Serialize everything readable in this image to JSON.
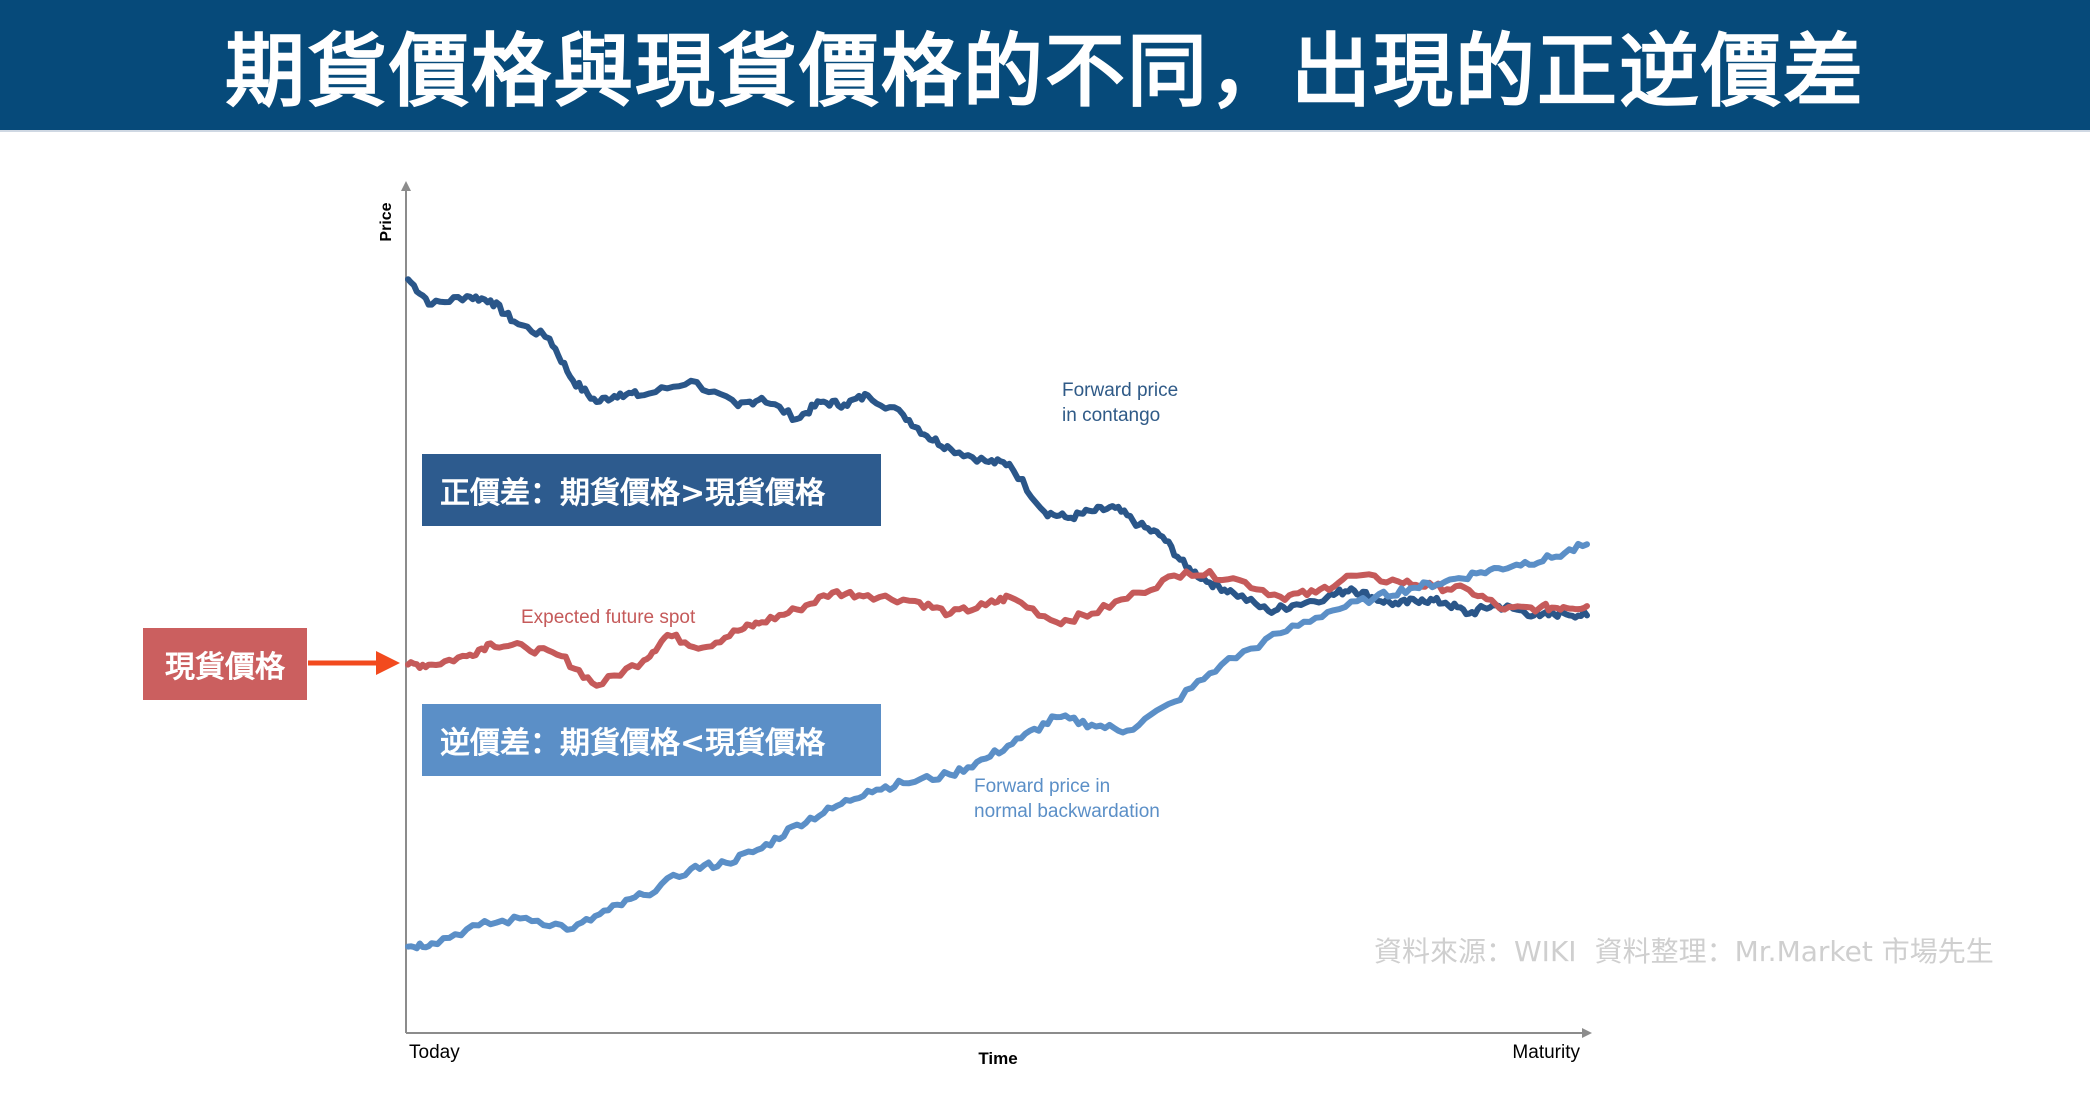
{
  "page": {
    "title": "期貨價格與現貨價格的不同，出現的正逆價差",
    "colors": {
      "title_bar": "#064a7a",
      "contango_line": "#2a5689",
      "spot_line": "#c55a5a",
      "backwardation_line": "#5b8fc7",
      "contango_box": "#2d5b8e",
      "backwardation_box": "#5b8fc7",
      "spot_box": "#cb5f5f",
      "arrow": "#f24a1e",
      "axis": "#8c8c8c",
      "watermark": "#cfcfcf"
    }
  },
  "labels": {
    "contango_box": "正價差：期貨價格>現貨價格",
    "backwardation_box": "逆價差：期貨價格<現貨價格",
    "spot_box": "現貨價格",
    "watermark": [
      "資料來源：WIKI",
      "資料整理：Mr.Market 市場先生"
    ]
  },
  "chart_data": {
    "type": "line",
    "title": "",
    "xlabel": "Time",
    "ylabel": "Price",
    "x_tick_labels": [
      "Today",
      "Maturity"
    ],
    "xlim": [
      0,
      1
    ],
    "ylim": [
      0,
      100
    ],
    "grid": false,
    "legend": "none",
    "series": [
      {
        "name": "Forward price in contango",
        "label_lines": [
          "Forward price",
          "in contango"
        ],
        "x": [
          0,
          0.02,
          0.05,
          0.07,
          0.09,
          0.12,
          0.14,
          0.16,
          0.18,
          0.2,
          0.24,
          0.28,
          0.3,
          0.33,
          0.35,
          0.37,
          0.39,
          0.42,
          0.44,
          0.46,
          0.49,
          0.51,
          0.54,
          0.56,
          0.58,
          0.6,
          0.62,
          0.64,
          0.66,
          0.68,
          0.7,
          0.73,
          0.75,
          0.78,
          0.8,
          0.82,
          0.84,
          0.86,
          0.88,
          0.9,
          0.92,
          0.94,
          0.96,
          0.98,
          1.0
        ],
        "values": [
          89,
          86,
          87,
          86.5,
          84,
          82,
          77,
          74.5,
          75.5,
          75.3,
          77,
          74,
          75,
          72.5,
          74.5,
          74.2,
          75.3,
          73,
          70.5,
          69,
          67.5,
          67.2,
          61.5,
          60.8,
          61.6,
          62,
          60,
          58.6,
          55,
          53.2,
          52,
          49.8,
          50.5,
          51.5,
          52.5,
          51.3,
          50.6,
          51.2,
          50.8,
          49.5,
          50.5,
          50,
          49.2,
          49.6,
          49.3
        ]
      },
      {
        "name": "Expected future spot",
        "label_lines": [
          "Expected future spot"
        ],
        "x": [
          0,
          0.02,
          0.05,
          0.07,
          0.1,
          0.13,
          0.16,
          0.2,
          0.22,
          0.25,
          0.28,
          0.3,
          0.33,
          0.36,
          0.39,
          0.43,
          0.46,
          0.49,
          0.51,
          0.55,
          0.58,
          0.62,
          0.66,
          0.7,
          0.74,
          0.77,
          0.8,
          0.84,
          0.87,
          0.9,
          0.93,
          0.96,
          0.98,
          1.0
        ],
        "values": [
          43.5,
          43.5,
          44.5,
          46,
          45.5,
          44.5,
          41,
          44,
          47,
          45.5,
          47.5,
          48.5,
          50,
          52,
          51.7,
          51,
          49.5,
          50.5,
          51.5,
          48.5,
          49.5,
          52,
          54.5,
          53.7,
          51.5,
          52,
          54,
          53.3,
          52.7,
          52.3,
          50,
          50.2,
          50.3,
          50.4
        ]
      },
      {
        "name": "Forward price in normal backwardation",
        "label_lines": [
          "Forward price in",
          "normal backwardation"
        ],
        "x": [
          0,
          0.02,
          0.06,
          0.1,
          0.14,
          0.17,
          0.2,
          0.24,
          0.27,
          0.3,
          0.33,
          0.36,
          0.39,
          0.42,
          0.46,
          0.49,
          0.52,
          0.55,
          0.58,
          0.61,
          0.65,
          0.69,
          0.74,
          0.78,
          0.82,
          0.85,
          0.88,
          0.91,
          0.94,
          0.97,
          1.0
        ],
        "values": [
          10.2,
          10.6,
          12.7,
          13.6,
          12.3,
          14.5,
          16.3,
          19.4,
          20.1,
          21.8,
          24.6,
          26.5,
          28.6,
          29.5,
          30.5,
          32.4,
          34.8,
          37.3,
          36.4,
          35.7,
          39.1,
          43.5,
          47.2,
          49.7,
          51.4,
          52.5,
          53.3,
          54.4,
          55.3,
          56.1,
          57.7
        ]
      }
    ]
  }
}
